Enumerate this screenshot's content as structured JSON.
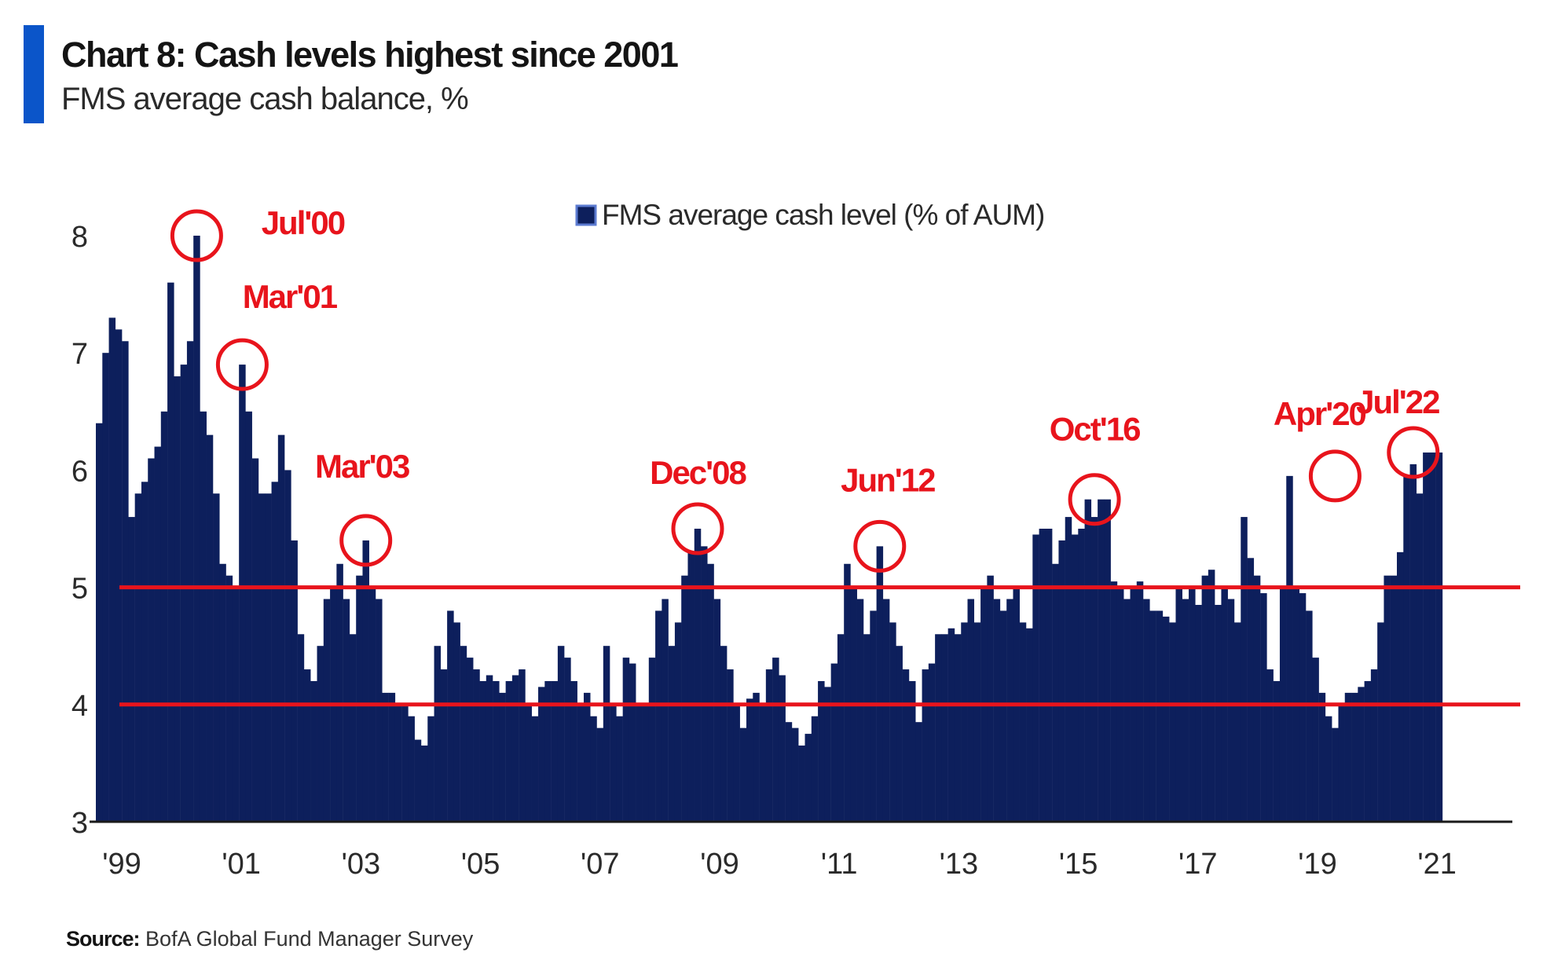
{
  "header": {
    "title": "Chart 8: Cash levels highest since 2001",
    "subtitle": "FMS average cash balance, %"
  },
  "footer": {
    "source_label": "Source:",
    "source_text": "BofA Global Fund Manager Survey"
  },
  "colors": {
    "accent": "#0b55c9",
    "bars": "#0d1f5c",
    "annotation": "#e8141c"
  },
  "chart_data": {
    "type": "bar",
    "title": "Chart 8: Cash levels highest since 2001",
    "subtitle": "FMS average cash balance, %",
    "xlabel": "",
    "ylabel": "",
    "ylim": [
      3,
      8
    ],
    "yticks": [
      3,
      4,
      5,
      6,
      7,
      8
    ],
    "ytick_labels": [
      "3",
      "4",
      "5",
      "6",
      "7",
      "8"
    ],
    "x_start": 1999.0,
    "x_step_years": 0.0833333,
    "xticks": [
      1999,
      2001,
      2003,
      2005,
      2007,
      2009,
      2011,
      2013,
      2015,
      2017,
      2019,
      2021
    ],
    "xtick_labels": [
      "'99",
      "'01",
      "'03",
      "'05",
      "'07",
      "'09",
      "'11",
      "'13",
      "'15",
      "'17",
      "'19",
      "'21"
    ],
    "legend": {
      "label": "FMS average cash level (% of AUM)",
      "position": "top-center"
    },
    "series": [
      {
        "name": "FMS average cash level (% of AUM)",
        "values": [
          6.4,
          7.0,
          7.3,
          7.2,
          7.1,
          5.6,
          5.8,
          5.9,
          6.1,
          6.2,
          6.5,
          7.6,
          6.8,
          6.9,
          7.1,
          8.0,
          6.5,
          6.3,
          5.8,
          5.2,
          5.1,
          5.0,
          6.9,
          6.5,
          6.1,
          5.8,
          5.8,
          5.9,
          6.3,
          6.0,
          5.4,
          4.6,
          4.3,
          4.2,
          4.5,
          4.9,
          5.0,
          5.2,
          4.9,
          4.6,
          5.1,
          5.4,
          5.0,
          4.9,
          4.1,
          4.1,
          4.0,
          4.0,
          3.9,
          3.7,
          3.65,
          3.9,
          4.5,
          4.3,
          4.8,
          4.7,
          4.5,
          4.4,
          4.3,
          4.2,
          4.25,
          4.2,
          4.1,
          4.2,
          4.25,
          4.3,
          4.0,
          3.9,
          4.15,
          4.2,
          4.2,
          4.5,
          4.4,
          4.2,
          4.0,
          4.1,
          3.9,
          3.8,
          4.5,
          4.0,
          3.9,
          4.4,
          4.35,
          4.0,
          4.0,
          4.4,
          4.8,
          4.9,
          4.5,
          4.7,
          5.1,
          5.3,
          5.5,
          5.35,
          5.2,
          4.9,
          4.5,
          4.3,
          4.0,
          3.8,
          4.05,
          4.1,
          4.0,
          4.3,
          4.4,
          4.25,
          3.85,
          3.8,
          3.65,
          3.75,
          3.9,
          4.2,
          4.15,
          4.35,
          4.6,
          5.2,
          5.0,
          4.9,
          4.6,
          4.8,
          5.35,
          4.9,
          4.7,
          4.5,
          4.3,
          4.2,
          3.85,
          4.3,
          4.35,
          4.6,
          4.6,
          4.65,
          4.6,
          4.7,
          4.9,
          4.7,
          5.0,
          5.1,
          4.9,
          4.8,
          4.9,
          5.0,
          4.7,
          4.65,
          5.45,
          5.5,
          5.5,
          5.2,
          5.4,
          5.6,
          5.45,
          5.5,
          5.75,
          5.6,
          5.75,
          5.75,
          5.05,
          5.0,
          4.9,
          5.0,
          5.05,
          4.9,
          4.8,
          4.8,
          4.75,
          4.7,
          5.0,
          4.9,
          5.0,
          4.85,
          5.1,
          5.15,
          4.85,
          5.0,
          4.9,
          4.7,
          5.6,
          5.25,
          5.1,
          4.95,
          4.3,
          4.2,
          5.0,
          5.95,
          5.0,
          4.95,
          4.8,
          4.4,
          4.1,
          3.9,
          3.8,
          4.0,
          4.1,
          4.1,
          4.15,
          4.2,
          4.3,
          4.7,
          5.1,
          5.1,
          5.3,
          5.95,
          6.05,
          5.8,
          6.15,
          6.15,
          6.15
        ]
      }
    ],
    "reference_lines": [
      {
        "y": 5,
        "label": ""
      },
      {
        "y": 4,
        "label": ""
      }
    ],
    "annotations": [
      {
        "label": "Jul'00",
        "x_index": 15,
        "y": 8.0
      },
      {
        "label": "Mar'01",
        "x_index": 22,
        "y": 6.9
      },
      {
        "label": "Mar'03",
        "x_index": 41,
        "y": 5.4
      },
      {
        "label": "Dec'08",
        "x_index": 92,
        "y": 5.5
      },
      {
        "label": "Jun'12",
        "x_index": 120,
        "y": 5.35
      },
      {
        "label": "Oct'16",
        "x_index": 153,
        "y": 5.75
      },
      {
        "label": "Apr'20",
        "x_index": 190,
        "y": 5.95
      },
      {
        "label": "Jul'22",
        "x_index": 202,
        "y": 6.15
      }
    ]
  }
}
